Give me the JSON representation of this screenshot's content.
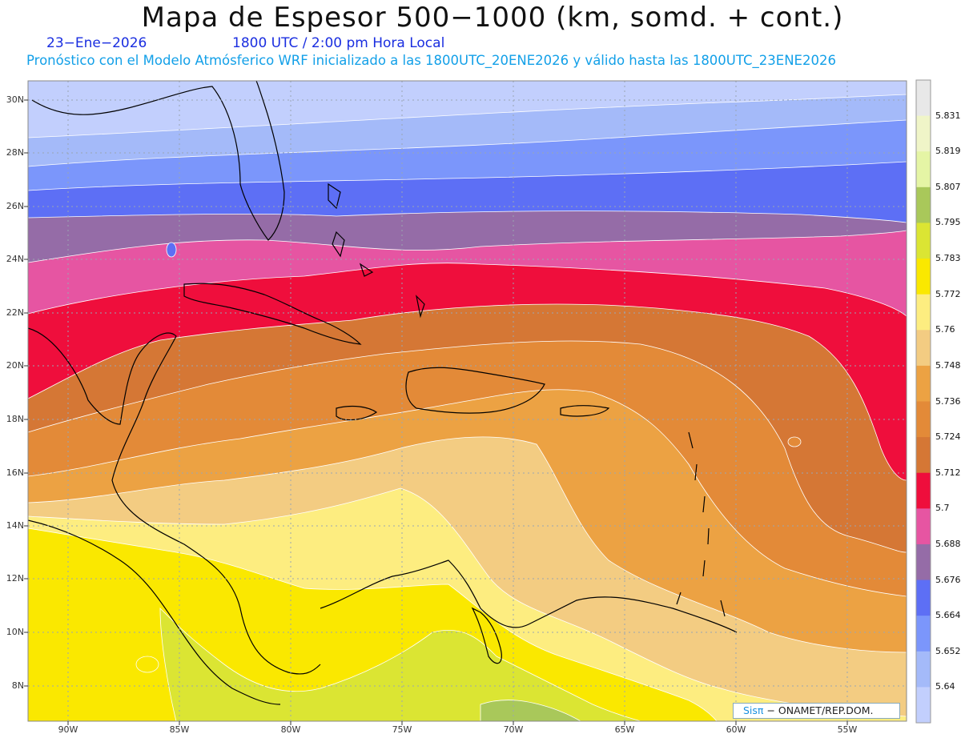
{
  "header": {
    "title": "Mapa de Espesor 500−1000 (km, somd. + cont.)",
    "date": "23−Ene−2026",
    "valid_time": "1800 UTC / 2:00 pm Hora Local",
    "subtitle": "Pronóstico con el Modelo Atmósferico WRF inicializado a las 1800UTC_20ENE2026 y válido hasta las  1800UTC_23ENE2026"
  },
  "axes": {
    "lat_labels": [
      "30N",
      "28N",
      "26N",
      "24N",
      "22N",
      "20N",
      "18N",
      "16N",
      "14N",
      "12N",
      "10N",
      "8N"
    ],
    "lon_labels": [
      "90W",
      "85W",
      "80W",
      "75W",
      "70W",
      "65W",
      "60W",
      "55W"
    ]
  },
  "colorbar": {
    "labels": [
      "5.831",
      "5.819",
      "5.807",
      "5.795",
      "5.783",
      "5.772",
      "5.76",
      "5.748",
      "5.736",
      "5.724",
      "5.712",
      "5.7",
      "5.688",
      "5.676",
      "5.664",
      "5.652",
      "5.64"
    ],
    "colors": [
      "#e8e8e8",
      "#f0f5c8",
      "#e5f5a5",
      "#a9c85a",
      "#dbe533",
      "#fae800",
      "#fded80",
      "#f3cc82",
      "#eca243",
      "#e38a38",
      "#d57735",
      "#ef0e3c",
      "#e655a2",
      "#956ca7",
      "#5d6ff5",
      "#7b96fb",
      "#a4baf9",
      "#c2cffd"
    ]
  },
  "credit": {
    "brand": "Sisπ",
    "org": "− ONAMET/REP.DOM."
  }
}
